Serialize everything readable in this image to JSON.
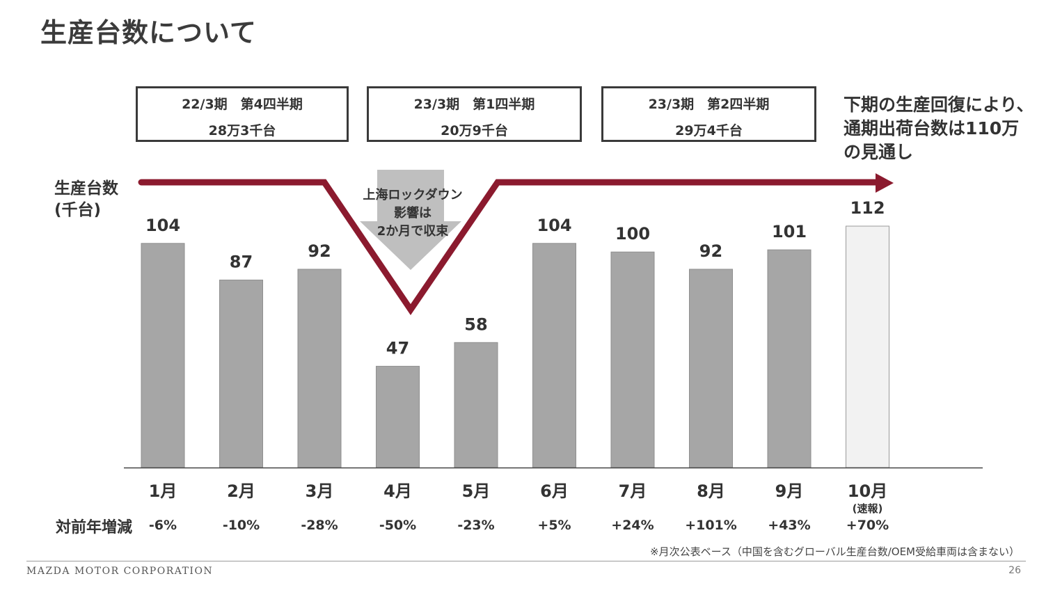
{
  "title": "生産台数について",
  "quarters": [
    {
      "label": "22/3期　第4四半期",
      "value": "28万3千台"
    },
    {
      "label": "23/3期　第1四半期",
      "value": "20万9千台"
    },
    {
      "label": "23/3期　第2四半期",
      "value": "29万4千台"
    }
  ],
  "outlook": [
    "下期の生産回復により、",
    "通期出荷台数は110万",
    "の見通し"
  ],
  "annotation": [
    "上海ロックダウン",
    "影響は",
    "2か月で収束"
  ],
  "yoy_title": "対前年増減",
  "footnote": "※月次公表ベース（中国を含むグローバル生産台数/OEM受給車両は含まない）",
  "footer": {
    "brand": "MAZDA MOTOR CORPORATION",
    "page": "26"
  },
  "colors": {
    "bar": "#a6a6a6",
    "bar_preliminary": "#f2f2f2",
    "trend_arrow": "#8b1a2e",
    "annotation_arrow": "#bfbfbf"
  },
  "chart_data": {
    "type": "bar",
    "ylabel": [
      "生産台数",
      "(千台)"
    ],
    "categories": [
      "1月",
      "2月",
      "3月",
      "4月",
      "5月",
      "6月",
      "7月",
      "8月",
      "9月",
      "10月"
    ],
    "category_notes": [
      "",
      "",
      "",
      "",
      "",
      "",
      "",
      "",
      "",
      "(速報)"
    ],
    "values": [
      104,
      87,
      92,
      47,
      58,
      104,
      100,
      92,
      101,
      112
    ],
    "yoy_change": [
      "-6%",
      "-10%",
      "-28%",
      "-50%",
      "-23%",
      "+5%",
      "+24%",
      "+101%",
      "+43%",
      "+70%"
    ],
    "preliminary_index": 9,
    "ylim": [
      0,
      112
    ],
    "grid": false,
    "legend": "none"
  }
}
